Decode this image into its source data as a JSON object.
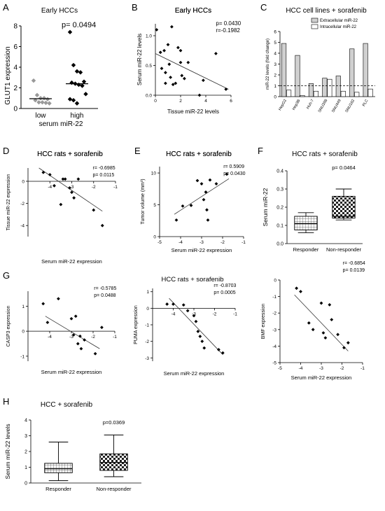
{
  "chart_data": [
    {
      "panel": "A",
      "type": "scatter",
      "title": "Early HCCs",
      "ylabel": "GLUT1 expression",
      "xlabel": "serum miR-22",
      "categories": [
        "low",
        "high"
      ],
      "ylim": [
        0,
        8
      ],
      "yticks": [
        0,
        2,
        4,
        6,
        8
      ],
      "stat": "p= 0.0494",
      "series": [
        {
          "category": "low",
          "marker": "diamond",
          "color": "#999999",
          "mean": 0.95,
          "values": [
            2.7,
            1.3,
            1.0,
            1.0,
            0.9,
            0.8,
            0.6,
            0.6,
            0.55,
            0.5
          ]
        },
        {
          "category": "high",
          "marker": "diamond",
          "color": "#000000",
          "mean": 2.4,
          "values": [
            7.4,
            4.2,
            3.6,
            3.5,
            2.6,
            2.5,
            2.4,
            2.3,
            2.2,
            1.4,
            0.9,
            0.8,
            0.5
          ]
        }
      ]
    },
    {
      "panel": "B",
      "type": "scatter",
      "title": "Early HCCs",
      "xlabel": "Tissue miR-22 levels",
      "ylabel": "Serum miR-22 levels",
      "xlim": [
        0,
        6
      ],
      "ylim": [
        0,
        1.2
      ],
      "xticks": [
        0,
        2,
        4,
        6
      ],
      "yticks": [
        0.0,
        0.5,
        1.0
      ],
      "stats": [
        "p= 0.0430",
        "r=-0.1982"
      ],
      "points": [
        [
          0.1,
          1.1
        ],
        [
          0.4,
          0.72
        ],
        [
          0.5,
          0.45
        ],
        [
          0.7,
          0.75
        ],
        [
          0.8,
          0.38
        ],
        [
          0.8,
          0.2
        ],
        [
          1.0,
          0.85
        ],
        [
          1.1,
          0.52
        ],
        [
          1.2,
          0.3
        ],
        [
          1.3,
          1.15
        ],
        [
          1.4,
          0.18
        ],
        [
          1.6,
          0.2
        ],
        [
          1.8,
          0.8
        ],
        [
          2.0,
          0.75
        ],
        [
          2.0,
          0.55
        ],
        [
          2.1,
          0.33
        ],
        [
          2.3,
          0.28
        ],
        [
          2.6,
          0.55
        ],
        [
          3.5,
          0.0
        ],
        [
          3.8,
          0.25
        ],
        [
          4.8,
          0.7
        ],
        [
          5.6,
          0.1
        ]
      ],
      "fit": [
        [
          0,
          0.7
        ],
        [
          5.8,
          0.1
        ]
      ]
    },
    {
      "panel": "C",
      "type": "bar",
      "title": "HCC cell lines + sorafenib",
      "ylabel": "miR-22 levels (fold change)",
      "categories": [
        "HepG2",
        "Hep3B",
        "Huh-7",
        "SNU398",
        "SNU449",
        "SNU182",
        "PLC"
      ],
      "ylim": [
        0,
        6
      ],
      "yticks": [
        0,
        1,
        2,
        3,
        4,
        5,
        6
      ],
      "reference_line": 1,
      "series": [
        {
          "name": "Extracellular miR-22",
          "color": "#d0d0d0",
          "values": [
            4.9,
            3.8,
            1.2,
            1.7,
            1.9,
            4.4,
            4.9
          ]
        },
        {
          "name": "Intracellular miR-22",
          "color": "#ffffff",
          "values": [
            0.6,
            0.1,
            0.5,
            1.6,
            0.5,
            0.4,
            0.7
          ]
        }
      ]
    },
    {
      "panel": "D",
      "type": "scatter",
      "title": "HCC rats + sorafenib",
      "xlabel": "Serum miR-22 expression",
      "ylabel": "Tissue miR-22 expression",
      "xlim": [
        -5,
        -1
      ],
      "ylim": [
        -5,
        1.2
      ],
      "xticks": [
        -4,
        -3,
        -2,
        -1
      ],
      "yticks": [
        -4,
        -2,
        0
      ],
      "stats": [
        "r= -0.6985",
        "p= 0.0115"
      ],
      "points": [
        [
          -4.3,
          0.8
        ],
        [
          -4.0,
          0.6
        ],
        [
          -3.8,
          -0.4
        ],
        [
          -3.5,
          -2.1
        ],
        [
          -3.4,
          0.2
        ],
        [
          -3.3,
          0.2
        ],
        [
          -3.1,
          -0.6
        ],
        [
          -3.0,
          -1.0
        ],
        [
          -2.9,
          -1.5
        ],
        [
          -2.7,
          0.2
        ],
        [
          -2.0,
          -2.6
        ],
        [
          -1.6,
          -4.0
        ]
      ],
      "fit": [
        [
          -4.5,
          1.2
        ],
        [
          -1.6,
          -2.7
        ]
      ]
    },
    {
      "panel": "E",
      "type": "scatter",
      "title": "HCC rats + sorafenib",
      "xlabel": "Serum miR-22 expression",
      "ylabel": "Tumor volume (mm³)",
      "xlim": [
        -5,
        -1
      ],
      "ylim": [
        0,
        11
      ],
      "xticks": [
        -5,
        -4,
        -3,
        -2,
        -1
      ],
      "yticks": [
        0,
        5,
        10
      ],
      "stats": [
        "r= 0.5909",
        "p= 0.0430"
      ],
      "points": [
        [
          -4.2,
          2.6
        ],
        [
          -3.9,
          4.8
        ],
        [
          -3.5,
          4.9
        ],
        [
          -3.2,
          8.8
        ],
        [
          -3.0,
          8.3
        ],
        [
          -2.9,
          5.8
        ],
        [
          -2.8,
          7.0
        ],
        [
          -2.75,
          4.2
        ],
        [
          -2.7,
          2.6
        ],
        [
          -2.6,
          8.9
        ],
        [
          -2.3,
          8.3
        ],
        [
          -1.8,
          9.8
        ]
      ],
      "fit": [
        [
          -4.3,
          3.5
        ],
        [
          -1.7,
          9.1
        ]
      ]
    },
    {
      "panel": "F",
      "type": "boxplot",
      "title": "HCC rats + sorafenib",
      "ylabel": "Serum miR-22",
      "categories": [
        "Responder",
        "Non-responder"
      ],
      "ylim": [
        0,
        0.4
      ],
      "yticks": [
        0.0,
        0.1,
        0.2,
        0.3,
        0.4
      ],
      "stat": "p= 0.0464",
      "boxes": [
        {
          "min": 0.06,
          "q1": 0.075,
          "median": 0.11,
          "q3": 0.15,
          "max": 0.17,
          "pattern": "grid"
        },
        {
          "min": 0.13,
          "q1": 0.14,
          "median": 0.15,
          "q3": 0.26,
          "max": 0.3,
          "pattern": "checker"
        }
      ]
    },
    {
      "panel": "G",
      "type": "scatter",
      "title": "HCC rats + sorafenib",
      "xlabel": "Serum miR-22 expression",
      "ylabel": "CASP3 expression",
      "xlim": [
        -5,
        -1
      ],
      "ylim": [
        -1.2,
        1.6
      ],
      "xticks": [
        -4,
        -3,
        -2,
        -1
      ],
      "yticks": [
        -1,
        0,
        1
      ],
      "stats": [
        "r= -0.5785",
        "p= 0.0488"
      ],
      "points": [
        [
          -4.3,
          1.1
        ],
        [
          -4.1,
          0.35
        ],
        [
          -3.6,
          1.3
        ],
        [
          -3.0,
          0.5
        ],
        [
          -2.9,
          -0.15
        ],
        [
          -2.8,
          0.6
        ],
        [
          -2.7,
          -0.5
        ],
        [
          -2.6,
          -0.2
        ],
        [
          -2.55,
          -0.7
        ],
        [
          -2.4,
          -0.35
        ],
        [
          -1.9,
          -0.9
        ],
        [
          -1.6,
          0.15
        ]
      ],
      "fit": [
        [
          -4.2,
          0.6
        ],
        [
          -1.7,
          -0.7
        ]
      ]
    },
    {
      "panel": "G2",
      "type": "scatter",
      "xlabel": "Serum miR-22 expression",
      "ylabel": "PUMA expression",
      "xlim": [
        -5,
        -1
      ],
      "ylim": [
        -3.2,
        1.2
      ],
      "xticks": [
        -4,
        -3,
        -2,
        -1
      ],
      "yticks": [
        -3,
        -2,
        -1,
        0,
        1
      ],
      "stats": [
        "r= -0.8703",
        "p= 0.0005"
      ],
      "points": [
        [
          -4.3,
          0.25
        ],
        [
          -4.0,
          0.25
        ],
        [
          -3.5,
          0.2
        ],
        [
          -3.3,
          -0.15
        ],
        [
          -3.0,
          -0.45
        ],
        [
          -2.9,
          -0.8
        ],
        [
          -2.8,
          -1.4
        ],
        [
          -2.7,
          -1.7
        ],
        [
          -2.6,
          -2.0
        ],
        [
          -2.5,
          -2.4
        ],
        [
          -1.8,
          -2.5
        ],
        [
          -1.6,
          -2.7
        ]
      ],
      "fit": [
        [
          -4.2,
          0.6
        ],
        [
          -1.6,
          -2.8
        ]
      ]
    },
    {
      "panel": "G3",
      "type": "scatter",
      "xlabel": "Serum miR-22 expression",
      "ylabel": "BMF expression",
      "xlim": [
        -5,
        -1
      ],
      "ylim": [
        -5,
        0
      ],
      "xticks": [
        -5,
        -4,
        -3,
        -2,
        -1
      ],
      "yticks": [
        -5,
        -4,
        -3,
        -2,
        -1,
        0
      ],
      "stats": [
        "r= -0.6854",
        "p= 0.0139"
      ],
      "points": [
        [
          -4.2,
          -0.5
        ],
        [
          -4.0,
          -0.7
        ],
        [
          -3.6,
          -2.6
        ],
        [
          -3.4,
          -3.0
        ],
        [
          -3.0,
          -1.4
        ],
        [
          -2.9,
          -3.2
        ],
        [
          -2.8,
          -3.5
        ],
        [
          -2.6,
          -1.5
        ],
        [
          -2.5,
          -2.4
        ],
        [
          -2.2,
          -3.3
        ],
        [
          -1.9,
          -4.1
        ],
        [
          -1.7,
          -3.8
        ]
      ],
      "fit": [
        [
          -4.3,
          -0.9
        ],
        [
          -1.7,
          -4.3
        ]
      ]
    },
    {
      "panel": "H",
      "type": "boxplot",
      "title": "HCC + sorafenib",
      "ylabel": "Serum miR-22 levels",
      "categories": [
        "Responder",
        "Non-responder"
      ],
      "ylim": [
        0,
        4
      ],
      "yticks": [
        0,
        1,
        2,
        3,
        4
      ],
      "stat": "p=0.0369",
      "boxes": [
        {
          "min": 0.15,
          "q1": 0.65,
          "median": 0.9,
          "q3": 1.25,
          "max": 2.6,
          "pattern": "grid"
        },
        {
          "min": 0.4,
          "q1": 0.8,
          "median": 1.3,
          "q3": 1.85,
          "max": 3.05,
          "pattern": "checker"
        }
      ]
    }
  ],
  "panel_letters": [
    "A",
    "B",
    "C",
    "D",
    "E",
    "F",
    "G",
    "H"
  ],
  "group_title_G": "HCC rats + sorafenib"
}
